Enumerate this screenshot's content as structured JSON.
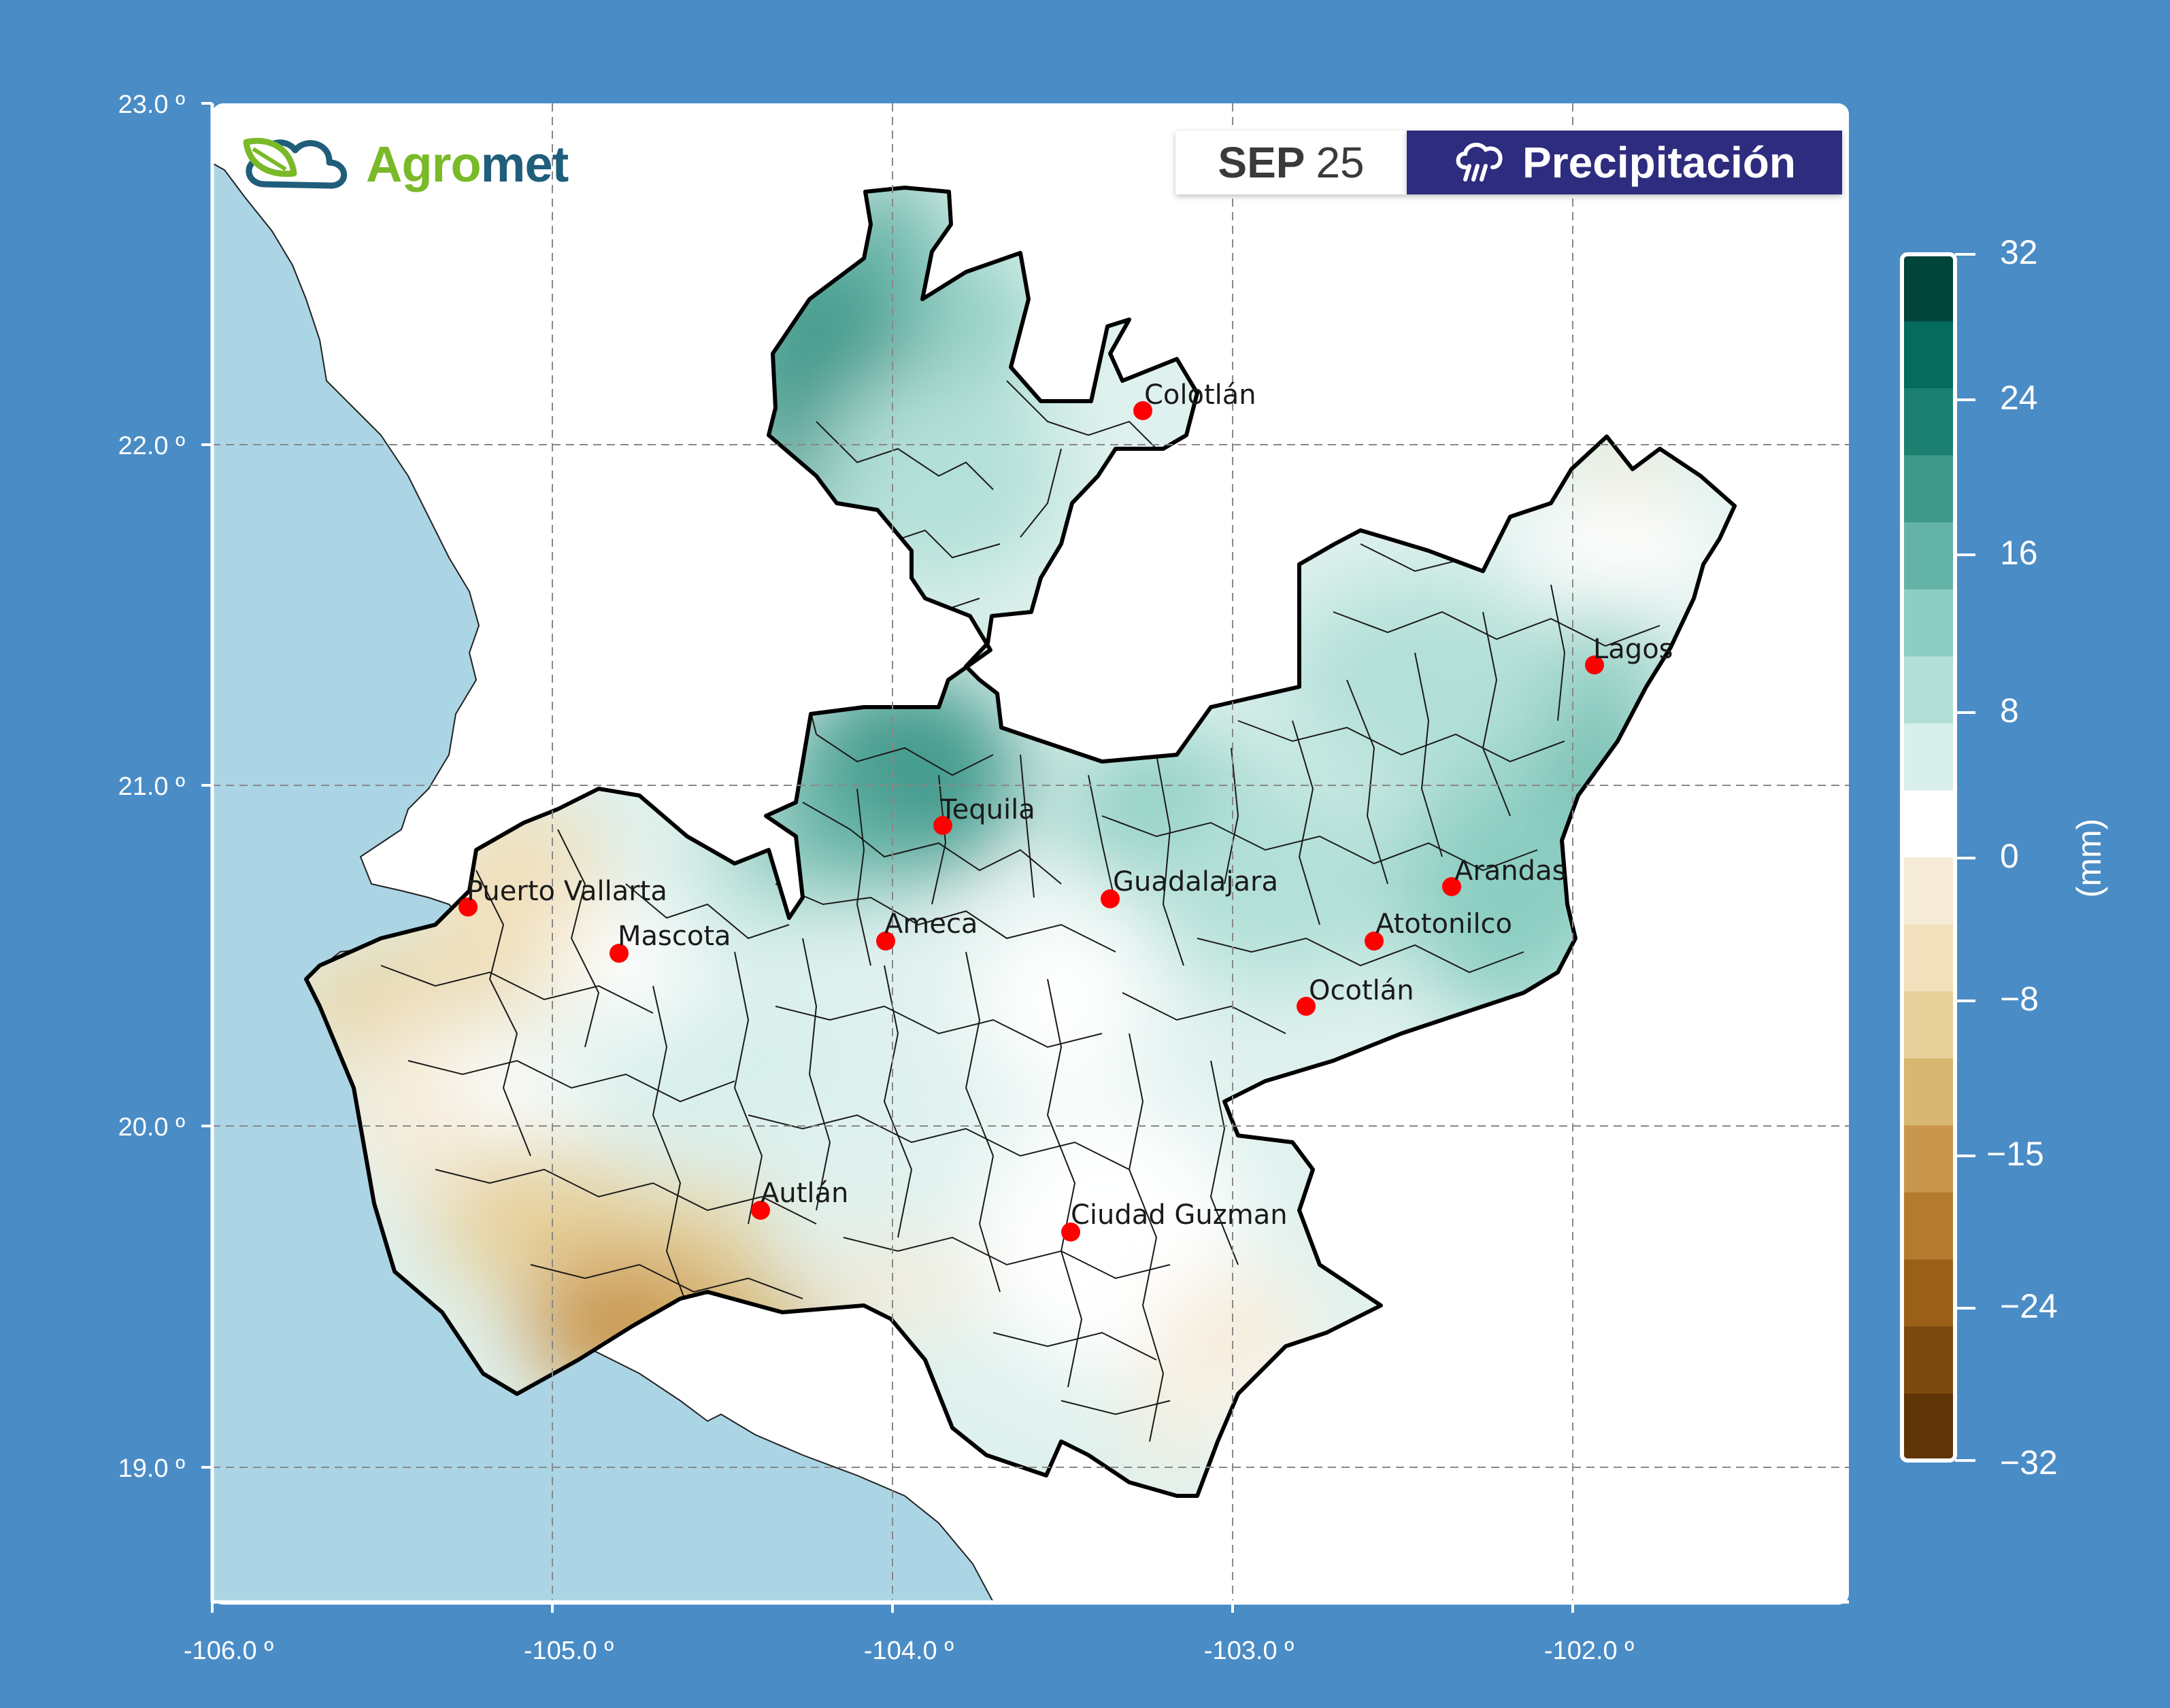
{
  "brand": {
    "logo_part1": "Agro",
    "logo_part2": "met",
    "icon": "cloud-leaf-icon"
  },
  "header": {
    "month": "SEP",
    "day": "25",
    "variable": "Precipitación",
    "variable_icon": "rain-cloud-icon"
  },
  "axes": {
    "lon_ticks": [
      "-106.0 º",
      "-105.0 º",
      "-104.0 º",
      "-103.0 º",
      "-102.0 º"
    ],
    "lat_ticks": [
      "23.0 º",
      "22.0 º",
      "21.0 º",
      "20.0 º",
      "19.0 º"
    ]
  },
  "colorbar": {
    "label": "(mm)",
    "tick_labels": [
      "32",
      "24",
      "16",
      "8",
      "0",
      "−8",
      "−15",
      "−24",
      "−32"
    ],
    "colors_top_to_bottom": [
      "#00443a",
      "#056b5c",
      "#1b8070",
      "#3f998b",
      "#63b3a6",
      "#8ccec2",
      "#b2e0d8",
      "#d8efeb",
      "#ffffff",
      "#f5ebd8",
      "#f1e0bc",
      "#e7d09a",
      "#d8b772",
      "#c9964e",
      "#b47a2e",
      "#9a6018",
      "#7c4a0e",
      "#5f3507"
    ]
  },
  "cities": [
    {
      "name": "Colotlán"
    },
    {
      "name": "Lagos"
    },
    {
      "name": "Tequila"
    },
    {
      "name": "Puerto Vallarta"
    },
    {
      "name": "Guadalajara"
    },
    {
      "name": "Arandas"
    },
    {
      "name": "Mascota"
    },
    {
      "name": "Ameca"
    },
    {
      "name": "Atotonilco"
    },
    {
      "name": "Ocotlán"
    },
    {
      "name": "Autlán"
    },
    {
      "name": "Ciudad Guzman"
    }
  ],
  "colors": {
    "background": "#4a8cc6",
    "ocean": "#abd5e4",
    "city_marker": "#ff0000",
    "title_box": "#2e2c7e"
  }
}
